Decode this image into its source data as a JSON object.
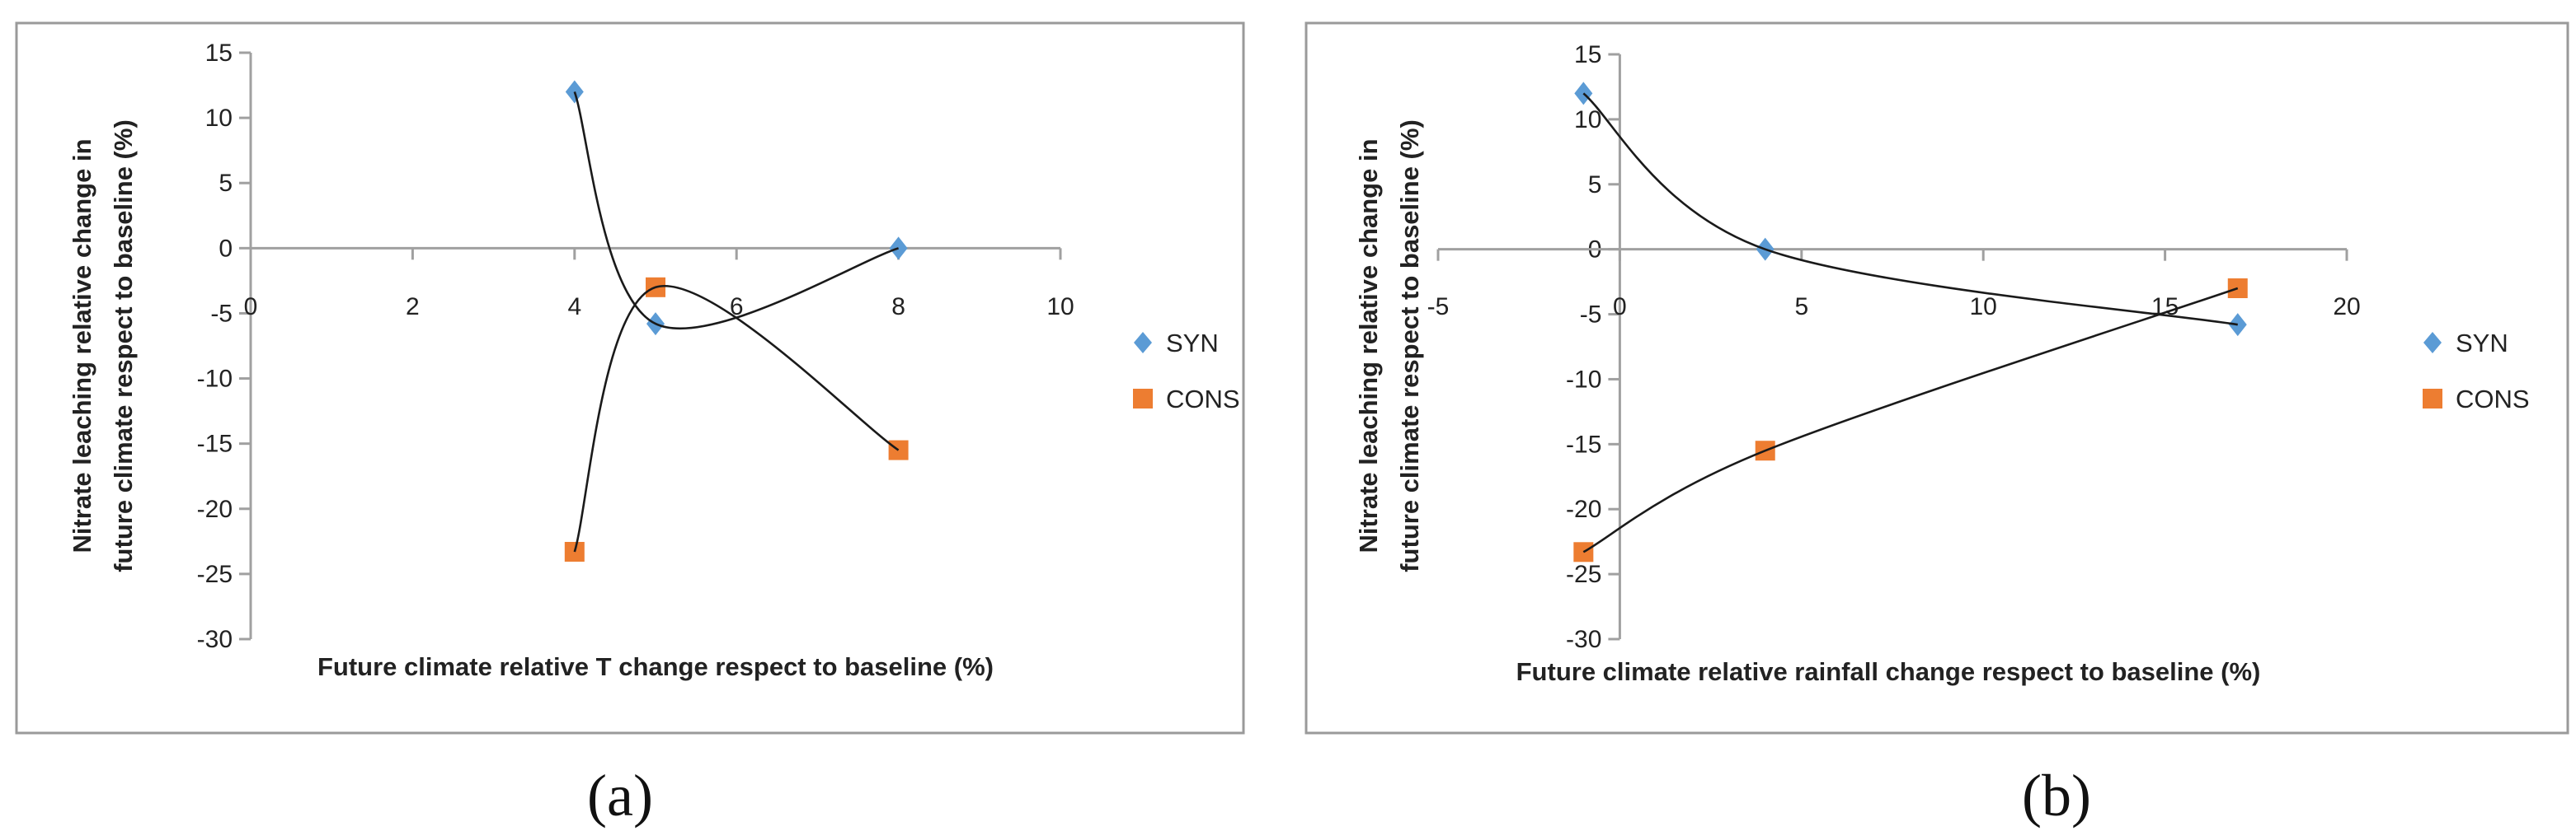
{
  "colors": {
    "SYN": "#5b9bd5",
    "CONS": "#ed7d31",
    "axis": "#a0a0a0",
    "curve": "#1a1a1a"
  },
  "chart_data": [
    {
      "type": "scatter",
      "panel_label": "(a)",
      "xlabel": "Future climate relative T change respect to baseline (%)",
      "ylabel_lines": [
        "Nitrate leaching  relative change in",
        "future climate respect to baseline  (%)"
      ],
      "xlim": [
        0,
        10
      ],
      "ylim": [
        -30,
        15
      ],
      "xticks": [
        "0",
        "2",
        "4",
        "6",
        "8",
        "10"
      ],
      "yticks": [
        "15",
        "10",
        "5",
        "0",
        "-5",
        "-10",
        "-15",
        "-20",
        "-25",
        "-30"
      ],
      "smoothed_lines": true,
      "legend": "right",
      "series": [
        {
          "name": "SYN",
          "marker": "diamond",
          "points": [
            [
              4,
              12
            ],
            [
              5,
              -5.8
            ],
            [
              8,
              0
            ]
          ]
        },
        {
          "name": "CONS",
          "marker": "square",
          "points": [
            [
              4,
              -23.3
            ],
            [
              5,
              -3
            ],
            [
              8,
              -15.5
            ]
          ]
        }
      ]
    },
    {
      "type": "scatter",
      "panel_label": "(b)",
      "xlabel": "Future climate relative rainfall change respect to baseline (%)",
      "ylabel_lines": [
        "Nitrate leaching relative change in",
        "future climate respect to baseline (%)"
      ],
      "xlim": [
        -5,
        20
      ],
      "ylim": [
        -30,
        15
      ],
      "xticks": [
        "-5",
        "0",
        "5",
        "10",
        "15",
        "20"
      ],
      "yticks": [
        "15",
        "10",
        "5",
        "0",
        "-5",
        "-10",
        "-15",
        "-20",
        "-25",
        "-30"
      ],
      "smoothed_lines": true,
      "legend": "right",
      "series": [
        {
          "name": "SYN",
          "marker": "diamond",
          "points": [
            [
              -1,
              12
            ],
            [
              4,
              0
            ],
            [
              17,
              -5.8
            ]
          ]
        },
        {
          "name": "CONS",
          "marker": "square",
          "points": [
            [
              -1,
              -23.3
            ],
            [
              4,
              -15.5
            ],
            [
              17,
              -3
            ]
          ]
        }
      ]
    }
  ]
}
